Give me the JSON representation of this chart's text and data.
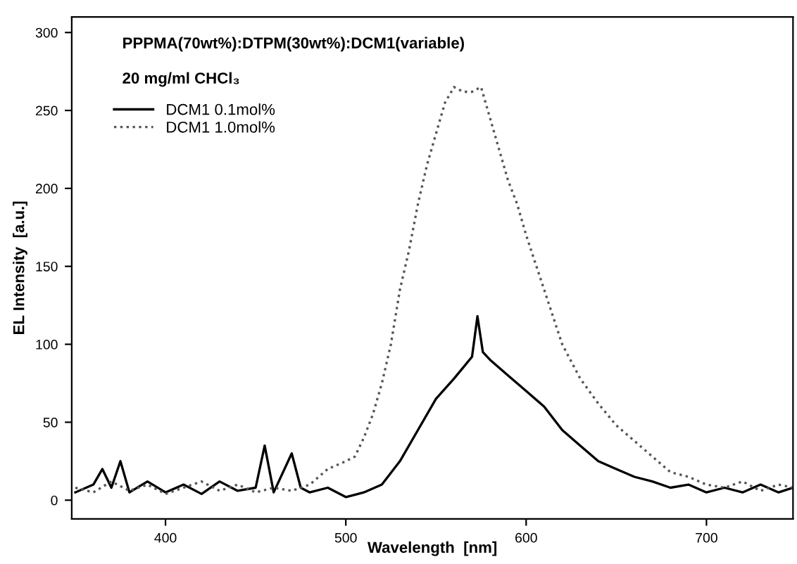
{
  "chart_data": {
    "type": "line",
    "title": "PPPMA(70wt%):DTPM(30wt%):DCM1(variable)",
    "subtitle": "20 mg/ml CHCl₃",
    "xlabel": "Wavelength  [nm]",
    "ylabel": "EL Intensity  [a.u.]",
    "xlim": [
      348,
      748
    ],
    "xticks": [
      400,
      500,
      600,
      700
    ],
    "ylim": [
      -12,
      310
    ],
    "yticks": [
      0,
      50,
      100,
      150,
      200,
      250,
      300
    ],
    "grid": false,
    "legend": "top left",
    "marker": "none",
    "series": [
      {
        "name": "DCM1 0.1mol%",
        "color": "#000000",
        "line_style": "solid",
        "x": [
          350,
          360,
          365,
          370,
          375,
          380,
          390,
          400,
          410,
          420,
          430,
          440,
          450,
          455,
          460,
          470,
          475,
          480,
          490,
          500,
          510,
          520,
          530,
          540,
          550,
          560,
          565,
          570,
          573,
          576,
          580,
          590,
          600,
          610,
          620,
          630,
          640,
          650,
          660,
          670,
          680,
          690,
          700,
          710,
          720,
          730,
          740,
          748
        ],
        "values": [
          5,
          10,
          20,
          8,
          25,
          5,
          12,
          5,
          10,
          4,
          12,
          6,
          8,
          35,
          5,
          30,
          8,
          5,
          8,
          2,
          5,
          10,
          25,
          45,
          65,
          78,
          85,
          92,
          118,
          95,
          90,
          80,
          70,
          60,
          45,
          35,
          25,
          20,
          15,
          12,
          8,
          10,
          5,
          8,
          5,
          10,
          5,
          8
        ]
      },
      {
        "name": "DCM1 1.0mol%",
        "color": "#555555",
        "line_style": "dotted",
        "x": [
          350,
          360,
          370,
          380,
          390,
          400,
          410,
          420,
          430,
          440,
          450,
          460,
          470,
          480,
          490,
          500,
          505,
          510,
          515,
          520,
          525,
          530,
          535,
          540,
          545,
          550,
          555,
          560,
          565,
          570,
          575,
          580,
          585,
          590,
          595,
          600,
          610,
          620,
          630,
          640,
          650,
          660,
          670,
          680,
          690,
          700,
          710,
          720,
          730,
          740,
          748
        ],
        "values": [
          8,
          5,
          12,
          6,
          10,
          4,
          8,
          12,
          6,
          10,
          5,
          8,
          6,
          10,
          20,
          25,
          28,
          40,
          55,
          75,
          100,
          135,
          160,
          190,
          215,
          235,
          255,
          265,
          262,
          262,
          265,
          245,
          225,
          205,
          190,
          170,
          135,
          100,
          78,
          62,
          48,
          38,
          28,
          18,
          15,
          10,
          8,
          12,
          6,
          10,
          8
        ]
      }
    ]
  }
}
